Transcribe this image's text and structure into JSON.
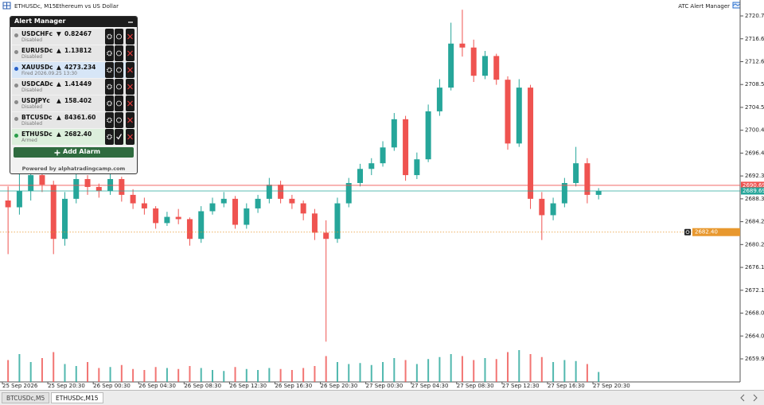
{
  "header": {
    "symbol": "ETHUSDc, M15:",
    "description": "Ethereum vs US Dollar",
    "indicator": "ATC Alert Manager"
  },
  "alert_manager": {
    "title": "Alert Manager",
    "alerts": [
      {
        "symbol": "USDCHFc",
        "direction": "▼",
        "price": "0.82467",
        "status": "Disabled",
        "dot_color": "#8a8a8a",
        "row_color": "#e6e6e6",
        "armed": false
      },
      {
        "symbol": "EURUSDc",
        "direction": "▲",
        "price": "1.13812",
        "status": "Disabled",
        "dot_color": "#8a8a8a",
        "row_color": "#e6e6e6",
        "armed": false
      },
      {
        "symbol": "XAUUSDc",
        "direction": "▲",
        "price": "4273.234",
        "status": "Fired 2026.09.25 13:30",
        "dot_color": "#2a62c9",
        "row_color": "#d7e6f7",
        "armed": false
      },
      {
        "symbol": "USDCADc",
        "direction": "▲",
        "price": "1.41449",
        "status": "Disabled",
        "dot_color": "#8a8a8a",
        "row_color": "#e6e6e6",
        "armed": false
      },
      {
        "symbol": "USDJPYc",
        "direction": "▲",
        "price": "158.402",
        "status": "Disabled",
        "dot_color": "#8a8a8a",
        "row_color": "#e6e6e6",
        "armed": false
      },
      {
        "symbol": "BTCUSDc",
        "direction": "▲",
        "price": "84361.60",
        "status": "Disabled",
        "dot_color": "#8a8a8a",
        "row_color": "#e6e6e6",
        "armed": false
      },
      {
        "symbol": "ETHUSDc",
        "direction": "▲",
        "price": "2682.40",
        "status": "Armed",
        "dot_color": "#2a9d4a",
        "row_color": "#dcefdc",
        "armed": true
      }
    ],
    "add_button": "Add Alarm",
    "footer": "Powered by alphatradingcamp.com"
  },
  "chart_data": {
    "type": "candlestick",
    "categories": [
      "25 Sep 2026",
      null,
      null,
      null,
      "25 Sep 20:30",
      null,
      null,
      null,
      "26 Sep 00:30",
      null,
      null,
      null,
      "26 Sep 04:30",
      null,
      null,
      null,
      "26 Sep 08:30",
      null,
      null,
      null,
      "26 Sep 12:30",
      null,
      null,
      null,
      "26 Sep 16:30",
      null,
      null,
      null,
      "26 Sep 20:30",
      null,
      null,
      null,
      "27 Sep 00:30",
      null,
      null,
      null,
      "27 Sep 04:30",
      null,
      null,
      null,
      "27 Sep 08:30",
      null,
      null,
      null,
      "27 Sep 12:30",
      null,
      null,
      null,
      "27 Sep 16:30",
      null,
      null,
      null,
      "27 Sep 20:30"
    ],
    "open": [
      2688.0,
      2686.8,
      2689.7,
      2692.5,
      2690.8,
      2681.2,
      2688.3,
      2691.8,
      2690.4,
      2689.7,
      2691.8,
      2689.0,
      2687.5,
      2686.6,
      2684.0,
      2685.1,
      2684.7,
      2681.2,
      2686.1,
      2687.5,
      2688.3,
      2683.7,
      2686.6,
      2688.3,
      2690.8,
      2688.3,
      2687.5,
      2685.7,
      2682.3,
      2681.2,
      2687.5,
      2691.1,
      2693.6,
      2694.6,
      2697.4,
      2702.4,
      2692.5,
      2695.3,
      2703.8,
      2708.0,
      2715.8,
      2715.1,
      2710.1,
      2713.6,
      2709.4,
      2698.1,
      2708.0,
      2688.3,
      2685.4,
      2687.5,
      2691.1,
      2694.6,
      2689.0
    ],
    "high": [
      2690.5,
      2694.0,
      2693.5,
      2693.8,
      2691.5,
      2689.5,
      2693.0,
      2692.5,
      2691.0,
      2692.8,
      2692.2,
      2690.0,
      2688.5,
      2687.0,
      2686.0,
      2686.5,
      2685.0,
      2687.0,
      2688.5,
      2689.5,
      2688.8,
      2687.5,
      2689.0,
      2692.0,
      2691.5,
      2689.0,
      2688.0,
      2686.5,
      2684.5,
      2688.5,
      2692.0,
      2694.5,
      2695.5,
      2698.5,
      2703.5,
      2703.0,
      2696.5,
      2705.0,
      2709.5,
      2719.5,
      2721.8,
      2716.5,
      2714.5,
      2714.0,
      2710.0,
      2709.5,
      2708.5,
      2689.5,
      2688.5,
      2692.0,
      2697.5,
      2695.5,
      2690.2
    ],
    "low": [
      2678.5,
      2685.5,
      2688.0,
      2689.5,
      2678.5,
      2680.0,
      2687.5,
      2689.0,
      2688.5,
      2689.0,
      2687.8,
      2686.5,
      2685.5,
      2683.0,
      2683.5,
      2683.8,
      2680.0,
      2680.5,
      2685.5,
      2686.8,
      2683.0,
      2683.0,
      2685.8,
      2687.5,
      2687.5,
      2686.5,
      2684.5,
      2681.0,
      2663.0,
      2680.5,
      2686.8,
      2690.5,
      2692.5,
      2694.0,
      2696.8,
      2691.5,
      2691.8,
      2694.8,
      2703.0,
      2707.5,
      2713.5,
      2709.0,
      2709.5,
      2708.5,
      2697.0,
      2697.5,
      2686.5,
      2681.0,
      2684.5,
      2686.8,
      2690.5,
      2687.5,
      2688.2
    ],
    "close": [
      2686.8,
      2689.7,
      2692.5,
      2690.8,
      2681.2,
      2688.3,
      2691.8,
      2690.4,
      2689.7,
      2691.8,
      2689.0,
      2687.5,
      2686.6,
      2684.0,
      2685.1,
      2684.7,
      2681.2,
      2686.1,
      2687.5,
      2688.3,
      2683.7,
      2686.6,
      2688.3,
      2690.8,
      2688.3,
      2687.5,
      2685.7,
      2682.3,
      2681.2,
      2687.5,
      2691.1,
      2693.6,
      2694.6,
      2697.4,
      2702.4,
      2692.5,
      2695.3,
      2703.8,
      2708.0,
      2715.8,
      2715.1,
      2710.1,
      2713.6,
      2709.4,
      2698.1,
      2708.0,
      2688.3,
      2685.4,
      2687.5,
      2691.1,
      2694.6,
      2689.0,
      2689.7
    ],
    "volume": [
      22,
      28,
      20,
      24,
      30,
      18,
      16,
      20,
      14,
      15,
      17,
      13,
      12,
      15,
      14,
      13,
      16,
      14,
      12,
      11,
      15,
      13,
      12,
      14,
      13,
      12,
      14,
      16,
      26,
      20,
      18,
      19,
      17,
      20,
      24,
      22,
      18,
      23,
      25,
      28,
      26,
      22,
      24,
      23,
      30,
      32,
      28,
      25,
      20,
      22,
      21,
      18,
      10
    ],
    "up_color": "#26a69a",
    "down_color": "#ef5350",
    "ylim": [
      2655.86,
      2723.24
    ],
    "yticks": [
      {
        "value": 2720.7,
        "label": "2720.70"
      },
      {
        "value": 2716.65,
        "label": "2716.65"
      },
      {
        "value": 2712.6,
        "label": "2712.60"
      },
      {
        "value": 2708.55,
        "label": "2708.55"
      },
      {
        "value": 2704.5,
        "label": "2704.50"
      },
      {
        "value": 2700.45,
        "label": "2700.45"
      },
      {
        "value": 2696.4,
        "label": "2696.40"
      },
      2692.35,
      {
        "value": 2688.3,
        "label": "2688.30"
      },
      2684.25,
      {
        "value": 2680.2,
        "label": "2680.20"
      },
      2676.15,
      {
        "value": 2672.1,
        "label": "2672.10"
      },
      {
        "value": 2668.05,
        "label": "2668.05"
      },
      {
        "value": 2664,
        "label": "2664.00"
      },
      2659.95
    ],
    "price_lines": [
      {
        "price": 2690.69,
        "color": "#ef5350",
        "style": "solid"
      },
      {
        "price": 2689.69,
        "color": "#26a69a",
        "style": "solid"
      },
      {
        "price": {
          "value": 2682.4,
          "label": "2682.40"
        },
        "color": "#e8982e",
        "style": "dotted"
      }
    ],
    "grid": false
  },
  "tabs": [
    "BTCUSDc,M5",
    "ETHUSDc,M15"
  ],
  "active_tab": 1
}
